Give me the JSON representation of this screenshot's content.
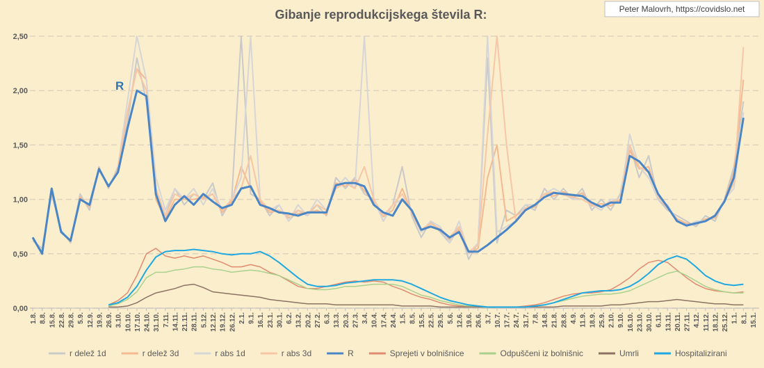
{
  "chart_data": {
    "type": "line",
    "title": "Gibanje reprodukcijskega števila R:",
    "credit": "Peter Malovrh, https://covidslo.net",
    "annotation": "R",
    "categories": [
      "1.8.",
      "8.8.",
      "15.8.",
      "22.8.",
      "29.8.",
      "5.9.",
      "12.9.",
      "19.9.",
      "26.9.",
      "3.10.",
      "10.10.",
      "17.10.",
      "24.10.",
      "31.10.",
      "7.11.",
      "14.11.",
      "21.11.",
      "28.11.",
      "5.12.",
      "12.12.",
      "19.12.",
      "26.12.",
      "2.1.",
      "9.1.",
      "16.1.",
      "23.1.",
      "30.1.",
      "6.2.",
      "13.2.",
      "20.2.",
      "27.2.",
      "6.3.",
      "13.3.",
      "20.3.",
      "27.3.",
      "3.4.",
      "10.4.",
      "17.4.",
      "24.4.",
      "1.5.",
      "8.5.",
      "15.5.",
      "22.5.",
      "29.5.",
      "5.6.",
      "12.6.",
      "19.6.",
      "26.6.",
      "3.7.",
      "10.7.",
      "17.7.",
      "24.7.",
      "31.7.",
      "7.8.",
      "14.8.",
      "21.8.",
      "28.8.",
      "4.9.",
      "11.9.",
      "18.9.",
      "25.9.",
      "2.10.",
      "9.10.",
      "16.10.",
      "23.10.",
      "30.10.",
      "6.11.",
      "13.11.",
      "20.11.",
      "27.11.",
      "4.12.",
      "11.12.",
      "18.12.",
      "25.12.",
      "1.1.",
      "8.1.",
      "15.1."
    ],
    "ylim": [
      0,
      2.5
    ],
    "yticks": [
      {
        "value": 0,
        "label": "0,00"
      },
      {
        "value": 0.5,
        "label": "0,50"
      },
      {
        "value": 1,
        "label": "1,00"
      },
      {
        "value": 1.5,
        "label": "1,50"
      },
      {
        "value": 2,
        "label": "2,00"
      },
      {
        "value": 2.5,
        "label": "2,50"
      }
    ],
    "grid": true,
    "legend": "bottom",
    "series": [
      {
        "name": "r delež 1d",
        "color": "#c9c9c9",
        "width": 2,
        "values": [
          0.62,
          0.55,
          1.05,
          0.72,
          0.6,
          1.05,
          0.9,
          1.3,
          1.1,
          1.3,
          1.7,
          2.3,
          1.9,
          1.1,
          0.85,
          1.1,
          0.95,
          1.05,
          1.0,
          1.15,
          0.85,
          1.0,
          2.5,
          1.05,
          1.0,
          0.85,
          0.95,
          0.8,
          0.9,
          0.85,
          0.95,
          0.85,
          1.2,
          1.1,
          1.2,
          1.05,
          1.0,
          0.8,
          0.95,
          1.3,
          0.85,
          0.65,
          0.8,
          0.7,
          0.6,
          0.75,
          0.45,
          0.6,
          2.3,
          0.6,
          0.9,
          0.85,
          0.95,
          0.9,
          1.1,
          1.0,
          1.1,
          1.0,
          1.1,
          0.9,
          1.0,
          0.9,
          1.05,
          1.5,
          1.2,
          1.4,
          1.0,
          0.9,
          0.85,
          0.8,
          0.75,
          0.85,
          0.8,
          1.0,
          1.3,
          1.9,
          null
        ]
      },
      {
        "name": "r delež 3d",
        "color": "#f4b990",
        "width": 2,
        "values": [
          0.64,
          0.52,
          1.08,
          0.7,
          0.61,
          1.02,
          0.93,
          1.29,
          1.11,
          1.27,
          1.8,
          2.2,
          2.1,
          1.0,
          0.82,
          1.0,
          1.0,
          1.0,
          1.02,
          1.05,
          0.88,
          0.98,
          1.3,
          1.1,
          0.98,
          0.88,
          0.9,
          0.83,
          0.87,
          0.87,
          0.9,
          0.86,
          1.15,
          1.12,
          1.18,
          1.08,
          0.98,
          0.84,
          0.9,
          1.1,
          0.88,
          0.7,
          0.78,
          0.72,
          0.63,
          0.72,
          0.5,
          0.55,
          1.2,
          1.5,
          0.8,
          0.85,
          0.92,
          0.93,
          1.05,
          1.03,
          1.07,
          1.02,
          1.06,
          0.94,
          0.96,
          0.94,
          1.0,
          1.45,
          1.28,
          1.3,
          1.02,
          0.92,
          0.82,
          0.78,
          0.77,
          0.82,
          0.83,
          0.99,
          1.25,
          2.1,
          null
        ]
      },
      {
        "name": "r abs 1d",
        "color": "#d6d6d6",
        "width": 2,
        "values": [
          null,
          null,
          null,
          null,
          null,
          null,
          null,
          null,
          null,
          1.3,
          1.9,
          2.5,
          2.1,
          1.2,
          0.9,
          1.1,
          1.0,
          1.1,
          0.95,
          1.1,
          0.9,
          1.0,
          1.2,
          2.5,
          1.0,
          0.9,
          0.95,
          0.8,
          0.95,
          0.85,
          1.0,
          0.9,
          1.1,
          1.2,
          1.1,
          2.5,
          1.0,
          0.8,
          0.95,
          1.0,
          0.9,
          0.7,
          0.8,
          0.75,
          0.6,
          0.8,
          0.5,
          0.6,
          2.5,
          0.7,
          0.75,
          0.8,
          0.95,
          0.95,
          1.05,
          1.1,
          1.05,
          1.0,
          1.0,
          0.95,
          0.9,
          1.0,
          1.0,
          1.6,
          1.3,
          1.2,
          1.0,
          0.95,
          0.8,
          0.75,
          0.8,
          0.8,
          0.85,
          1.0,
          1.1,
          1.8,
          null
        ]
      },
      {
        "name": "r abs 3d",
        "color": "#f7c7a5",
        "width": 2,
        "values": [
          null,
          null,
          null,
          null,
          null,
          null,
          null,
          null,
          null,
          1.3,
          1.8,
          2.2,
          2.0,
          1.1,
          0.85,
          1.05,
          1.0,
          1.05,
          1.0,
          1.05,
          0.9,
          1.0,
          1.1,
          1.4,
          1.0,
          0.9,
          0.9,
          0.85,
          0.9,
          0.87,
          0.95,
          0.9,
          1.1,
          1.15,
          1.1,
          1.3,
          1.0,
          0.85,
          0.95,
          1.05,
          0.88,
          0.72,
          0.78,
          0.73,
          0.65,
          0.75,
          0.52,
          0.58,
          1.6,
          2.5,
          1.5,
          0.8,
          0.92,
          0.95,
          1.05,
          1.07,
          1.04,
          1.02,
          1.0,
          0.95,
          0.93,
          0.98,
          1.0,
          1.5,
          1.3,
          1.25,
          1.03,
          0.93,
          0.8,
          0.76,
          0.78,
          0.8,
          0.85,
          0.98,
          1.15,
          2.4,
          null
        ]
      },
      {
        "name": "R",
        "color": "#4a86c5",
        "width": 3,
        "values": [
          0.65,
          0.5,
          1.1,
          0.7,
          0.62,
          1.0,
          0.95,
          1.28,
          1.12,
          1.25,
          1.65,
          2.0,
          1.95,
          1.05,
          0.8,
          0.95,
          1.03,
          0.95,
          1.05,
          0.98,
          0.92,
          0.95,
          1.1,
          1.12,
          0.95,
          0.92,
          0.88,
          0.87,
          0.85,
          0.88,
          0.88,
          0.88,
          1.13,
          1.15,
          1.15,
          1.12,
          0.95,
          0.88,
          0.85,
          1.0,
          0.9,
          0.72,
          0.75,
          0.72,
          0.65,
          0.7,
          0.52,
          0.52,
          0.58,
          0.65,
          0.72,
          0.8,
          0.9,
          0.95,
          1.02,
          1.06,
          1.05,
          1.04,
          1.03,
          0.97,
          0.93,
          0.97,
          0.97,
          1.4,
          1.35,
          1.25,
          1.05,
          0.93,
          0.8,
          0.76,
          0.78,
          0.8,
          0.85,
          0.98,
          1.2,
          1.75,
          null
        ]
      },
      {
        "name": "Sprejeti v bolnišnice",
        "color": "#e08a70",
        "width": 1.5,
        "values": [
          null,
          null,
          null,
          null,
          null,
          null,
          null,
          null,
          0.03,
          0.07,
          0.14,
          0.3,
          0.5,
          0.55,
          0.48,
          0.46,
          0.48,
          0.46,
          0.48,
          0.45,
          0.42,
          0.38,
          0.38,
          0.4,
          0.38,
          0.33,
          0.3,
          0.25,
          0.2,
          0.18,
          0.18,
          0.2,
          0.22,
          0.24,
          0.25,
          0.24,
          0.25,
          0.24,
          0.2,
          0.17,
          0.13,
          0.1,
          0.08,
          0.05,
          0.03,
          0.02,
          0.02,
          0.01,
          0.01,
          0.01,
          0.01,
          0.01,
          0.02,
          0.03,
          0.05,
          0.08,
          0.11,
          0.13,
          0.14,
          0.14,
          0.15,
          0.17,
          0.22,
          0.28,
          0.36,
          0.42,
          0.44,
          0.42,
          0.35,
          0.28,
          0.22,
          0.18,
          0.16,
          0.15,
          0.14,
          0.15,
          null
        ]
      },
      {
        "name": "Odpuščeni iz bolnišnic",
        "color": "#a9d18e",
        "width": 1.5,
        "values": [
          null,
          null,
          null,
          null,
          null,
          null,
          null,
          null,
          0.02,
          0.04,
          0.08,
          0.15,
          0.28,
          0.33,
          0.33,
          0.35,
          0.36,
          0.38,
          0.38,
          0.36,
          0.35,
          0.33,
          0.34,
          0.35,
          0.34,
          0.32,
          0.3,
          0.26,
          0.22,
          0.18,
          0.17,
          0.17,
          0.18,
          0.2,
          0.2,
          0.21,
          0.22,
          0.22,
          0.22,
          0.2,
          0.16,
          0.12,
          0.1,
          0.07,
          0.05,
          0.03,
          0.02,
          0.01,
          0.01,
          0.01,
          0.01,
          0.01,
          0.01,
          0.02,
          0.03,
          0.05,
          0.07,
          0.09,
          0.11,
          0.12,
          0.13,
          0.13,
          0.14,
          0.16,
          0.2,
          0.24,
          0.28,
          0.32,
          0.34,
          0.3,
          0.25,
          0.2,
          0.17,
          0.15,
          0.14,
          0.14,
          null
        ]
      },
      {
        "name": "Umrli",
        "color": "#8b7262",
        "width": 1.5,
        "values": [
          null,
          null,
          null,
          null,
          null,
          null,
          null,
          null,
          0.01,
          0.01,
          0.02,
          0.05,
          0.1,
          0.14,
          0.16,
          0.18,
          0.21,
          0.22,
          0.19,
          0.15,
          0.14,
          0.13,
          0.12,
          0.11,
          0.1,
          0.08,
          0.07,
          0.06,
          0.05,
          0.04,
          0.04,
          0.04,
          0.03,
          0.03,
          0.03,
          0.03,
          0.03,
          0.03,
          0.03,
          0.02,
          0.02,
          0.02,
          0.02,
          0.01,
          0.01,
          0.01,
          0.01,
          0.01,
          0.01,
          0.01,
          0.01,
          0.01,
          0.01,
          0.01,
          0.01,
          0.01,
          0.02,
          0.02,
          0.02,
          0.02,
          0.02,
          0.03,
          0.03,
          0.04,
          0.05,
          0.06,
          0.06,
          0.07,
          0.08,
          0.07,
          0.06,
          0.05,
          0.04,
          0.04,
          0.03,
          0.03,
          null
        ]
      },
      {
        "name": "Hospitalizirani",
        "color": "#1fa7e0",
        "width": 2,
        "values": [
          null,
          null,
          null,
          null,
          null,
          null,
          null,
          null,
          0.03,
          0.05,
          0.1,
          0.2,
          0.35,
          0.47,
          0.52,
          0.53,
          0.53,
          0.54,
          0.53,
          0.52,
          0.5,
          0.49,
          0.5,
          0.5,
          0.52,
          0.48,
          0.42,
          0.35,
          0.28,
          0.22,
          0.2,
          0.2,
          0.21,
          0.23,
          0.24,
          0.25,
          0.26,
          0.26,
          0.26,
          0.25,
          0.22,
          0.18,
          0.14,
          0.1,
          0.07,
          0.05,
          0.03,
          0.02,
          0.01,
          0.01,
          0.01,
          0.01,
          0.01,
          0.02,
          0.03,
          0.05,
          0.08,
          0.11,
          0.14,
          0.15,
          0.16,
          0.16,
          0.17,
          0.2,
          0.25,
          0.32,
          0.4,
          0.45,
          0.48,
          0.45,
          0.38,
          0.3,
          0.25,
          0.22,
          0.21,
          0.22,
          null
        ]
      }
    ]
  }
}
